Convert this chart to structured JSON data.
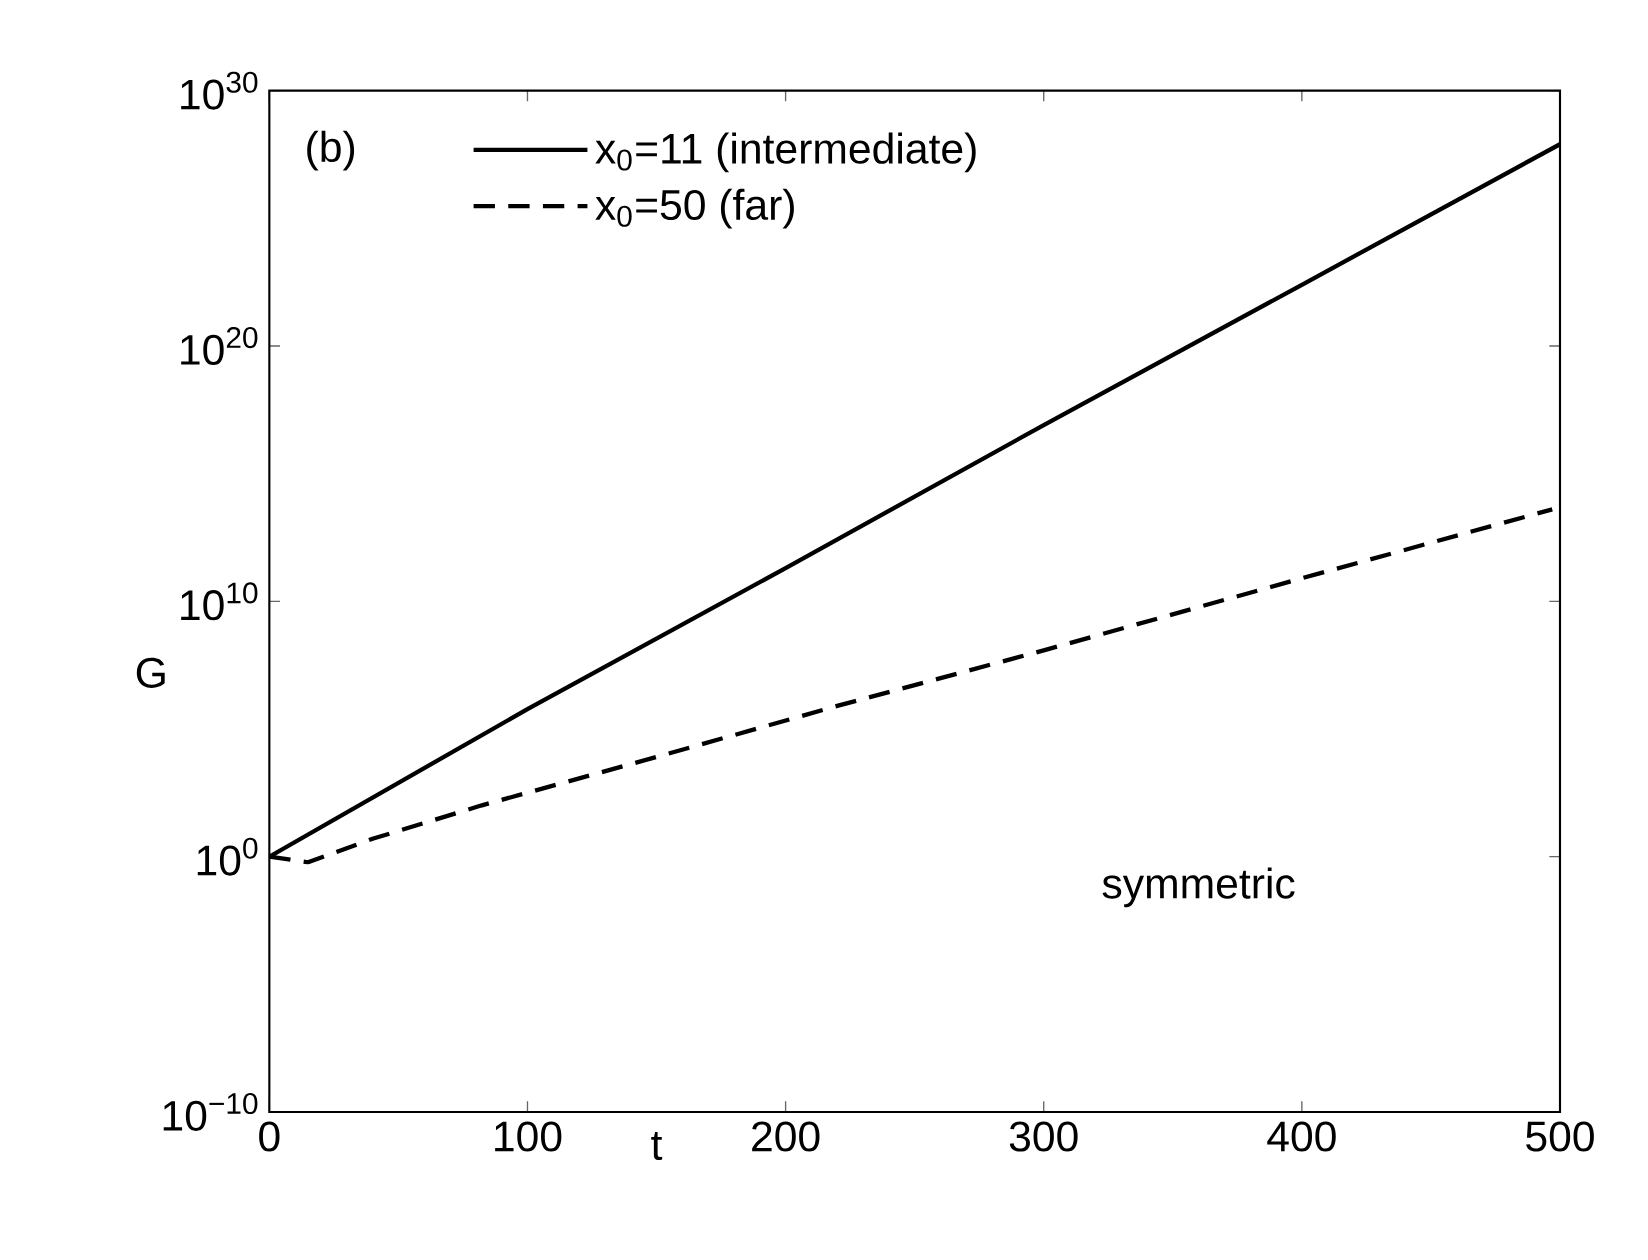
{
  "chart_data": {
    "type": "line",
    "xlabel": "t",
    "ylabel": "G",
    "annotations": [
      "(b)",
      "symmetric"
    ],
    "xlim": [
      0,
      500
    ],
    "xticks": [
      0,
      100,
      200,
      300,
      400,
      500
    ],
    "ylim": [
      1e-10,
      1e+30
    ],
    "yticks": [
      {
        "value": 1e-10,
        "label": "10$^{−10}$"
      },
      {
        "value": 1,
        "label": "10$^{0}$"
      },
      {
        "value": 10000000000.0,
        "label": "10$^{10}$"
      },
      {
        "value": 1e+20,
        "label": "10$^{20}$"
      },
      {
        "value": 1e+30,
        "label": "10$^{30}$"
      }
    ],
    "log": "y",
    "legend": "top left",
    "series": [
      {
        "name": "x$_{0}$=11 (intermediate)",
        "color": "#000000",
        "line_style": "solid",
        "x": [
          0,
          100,
          200,
          300,
          400,
          500
        ],
        "values": [
          1,
          600000.0,
          200000000000.0,
          8e+16,
          2.5e+22,
          8e+27
        ]
      },
      {
        "name": "x$_{0}$=50 (far)",
        "color": "#000000",
        "line_style": "dashed",
        "x": [
          0,
          15,
          40,
          82,
          150,
          220,
          300,
          400,
          497
        ],
        "values": [
          1,
          0.6,
          5,
          100,
          8000.0,
          800000.0,
          120000000.0,
          80000000000.0,
          40000000000000.0
        ]
      }
    ]
  }
}
